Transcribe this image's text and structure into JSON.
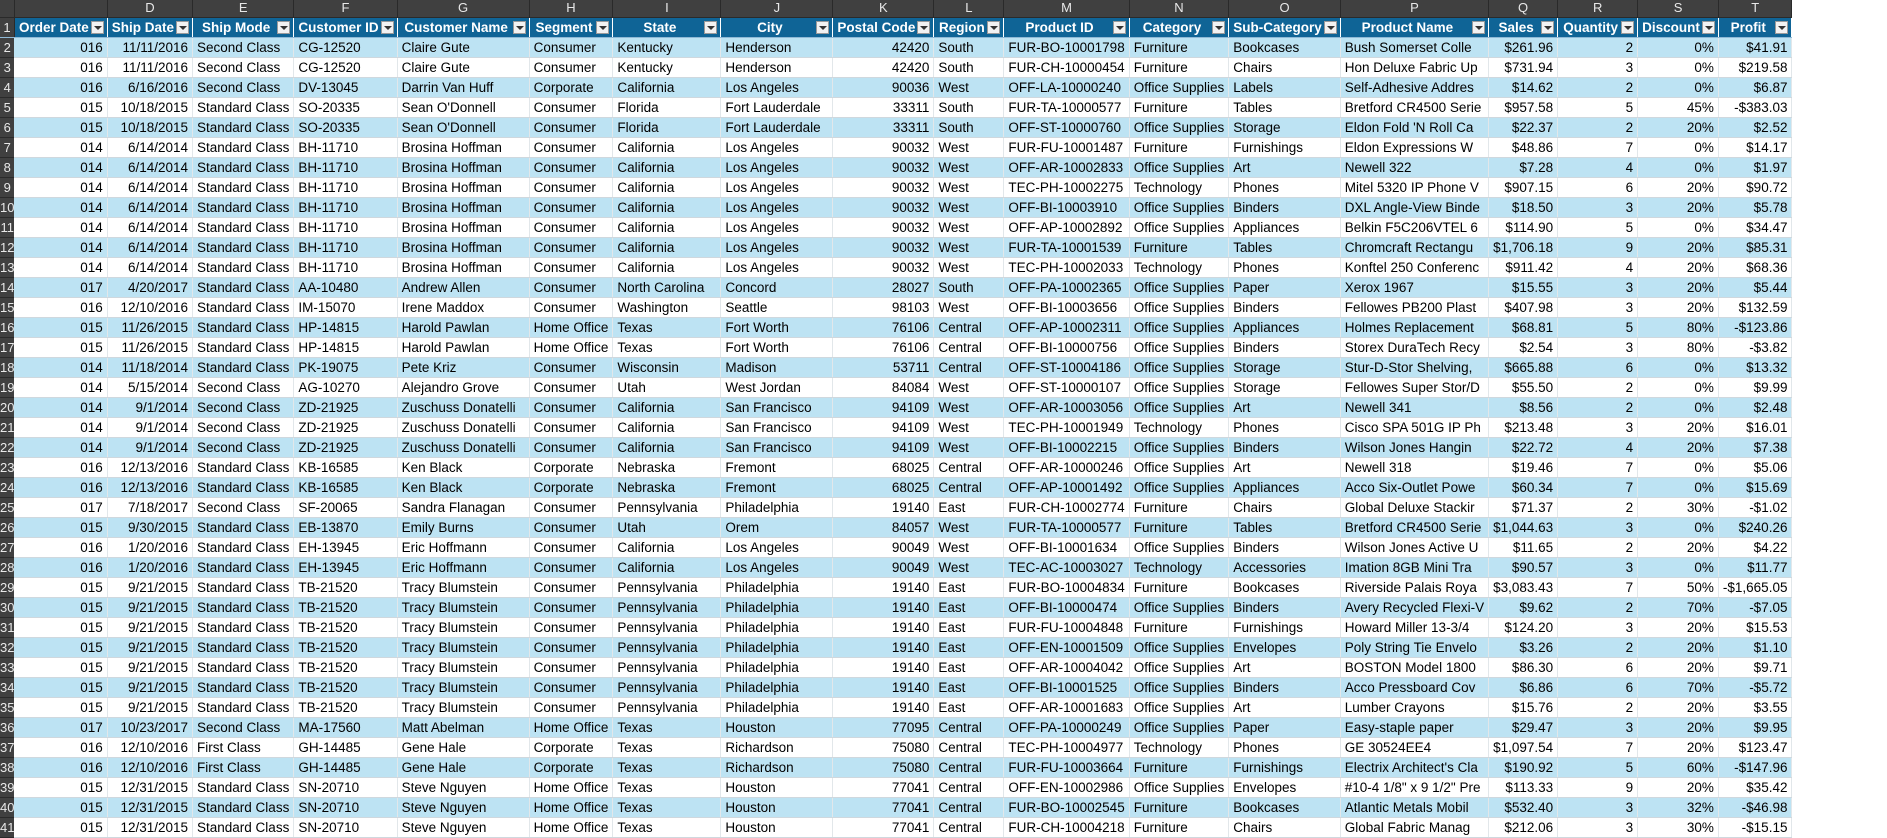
{
  "column_letters": [
    "D",
    "E",
    "F",
    "G",
    "H",
    "I",
    "J",
    "K",
    "L",
    "M",
    "N",
    "O",
    "P",
    "Q",
    "R",
    "S",
    "T"
  ],
  "headers": [
    "Order Date",
    "Ship Date",
    "Ship Mode",
    "Customer ID",
    "Customer Name",
    "Segment",
    "State",
    "City",
    "Postal Code",
    "Region",
    "Product ID",
    "Category",
    "Sub-Category",
    "Product Name",
    "Sales",
    "Quantity",
    "Discount",
    "Profit"
  ],
  "rows": [
    [
      "016",
      "11/11/2016",
      "Second Class",
      "CG-12520",
      "Claire Gute",
      "Consumer",
      "Kentucky",
      "Henderson",
      "42420",
      "South",
      "FUR-BO-10001798",
      "Furniture",
      "Bookcases",
      "Bush Somerset Colle",
      "$261.96",
      "2",
      "0%",
      "$41.91"
    ],
    [
      "016",
      "11/11/2016",
      "Second Class",
      "CG-12520",
      "Claire Gute",
      "Consumer",
      "Kentucky",
      "Henderson",
      "42420",
      "South",
      "FUR-CH-10000454",
      "Furniture",
      "Chairs",
      "Hon Deluxe Fabric Up",
      "$731.94",
      "3",
      "0%",
      "$219.58"
    ],
    [
      "016",
      "6/16/2016",
      "Second Class",
      "DV-13045",
      "Darrin Van Huff",
      "Corporate",
      "California",
      "Los Angeles",
      "90036",
      "West",
      "OFF-LA-10000240",
      "Office Supplies",
      "Labels",
      "Self-Adhesive Addres",
      "$14.62",
      "2",
      "0%",
      "$6.87"
    ],
    [
      "015",
      "10/18/2015",
      "Standard Class",
      "SO-20335",
      "Sean O'Donnell",
      "Consumer",
      "Florida",
      "Fort Lauderdale",
      "33311",
      "South",
      "FUR-TA-10000577",
      "Furniture",
      "Tables",
      "Bretford CR4500 Serie",
      "$957.58",
      "5",
      "45%",
      "-$383.03"
    ],
    [
      "015",
      "10/18/2015",
      "Standard Class",
      "SO-20335",
      "Sean O'Donnell",
      "Consumer",
      "Florida",
      "Fort Lauderdale",
      "33311",
      "South",
      "OFF-ST-10000760",
      "Office Supplies",
      "Storage",
      "Eldon Fold 'N Roll Ca",
      "$22.37",
      "2",
      "20%",
      "$2.52"
    ],
    [
      "014",
      "6/14/2014",
      "Standard Class",
      "BH-11710",
      "Brosina Hoffman",
      "Consumer",
      "California",
      "Los Angeles",
      "90032",
      "West",
      "FUR-FU-10001487",
      "Furniture",
      "Furnishings",
      "Eldon Expressions W",
      "$48.86",
      "7",
      "0%",
      "$14.17"
    ],
    [
      "014",
      "6/14/2014",
      "Standard Class",
      "BH-11710",
      "Brosina Hoffman",
      "Consumer",
      "California",
      "Los Angeles",
      "90032",
      "West",
      "OFF-AR-10002833",
      "Office Supplies",
      "Art",
      "Newell 322",
      "$7.28",
      "4",
      "0%",
      "$1.97"
    ],
    [
      "014",
      "6/14/2014",
      "Standard Class",
      "BH-11710",
      "Brosina Hoffman",
      "Consumer",
      "California",
      "Los Angeles",
      "90032",
      "West",
      "TEC-PH-10002275",
      "Technology",
      "Phones",
      "Mitel 5320 IP Phone V",
      "$907.15",
      "6",
      "20%",
      "$90.72"
    ],
    [
      "014",
      "6/14/2014",
      "Standard Class",
      "BH-11710",
      "Brosina Hoffman",
      "Consumer",
      "California",
      "Los Angeles",
      "90032",
      "West",
      "OFF-BI-10003910",
      "Office Supplies",
      "Binders",
      "DXL Angle-View Binde",
      "$18.50",
      "3",
      "20%",
      "$5.78"
    ],
    [
      "014",
      "6/14/2014",
      "Standard Class",
      "BH-11710",
      "Brosina Hoffman",
      "Consumer",
      "California",
      "Los Angeles",
      "90032",
      "West",
      "OFF-AP-10002892",
      "Office Supplies",
      "Appliances",
      "Belkin F5C206VTEL 6",
      "$114.90",
      "5",
      "0%",
      "$34.47"
    ],
    [
      "014",
      "6/14/2014",
      "Standard Class",
      "BH-11710",
      "Brosina Hoffman",
      "Consumer",
      "California",
      "Los Angeles",
      "90032",
      "West",
      "FUR-TA-10001539",
      "Furniture",
      "Tables",
      "Chromcraft Rectangu",
      "$1,706.18",
      "9",
      "20%",
      "$85.31"
    ],
    [
      "014",
      "6/14/2014",
      "Standard Class",
      "BH-11710",
      "Brosina Hoffman",
      "Consumer",
      "California",
      "Los Angeles",
      "90032",
      "West",
      "TEC-PH-10002033",
      "Technology",
      "Phones",
      "Konftel 250 Conferenc",
      "$911.42",
      "4",
      "20%",
      "$68.36"
    ],
    [
      "017",
      "4/20/2017",
      "Standard Class",
      "AA-10480",
      "Andrew Allen",
      "Consumer",
      "North Carolina",
      "Concord",
      "28027",
      "South",
      "OFF-PA-10002365",
      "Office Supplies",
      "Paper",
      "Xerox 1967",
      "$15.55",
      "3",
      "20%",
      "$5.44"
    ],
    [
      "016",
      "12/10/2016",
      "Standard Class",
      "IM-15070",
      "Irene Maddox",
      "Consumer",
      "Washington",
      "Seattle",
      "98103",
      "West",
      "OFF-BI-10003656",
      "Office Supplies",
      "Binders",
      "Fellowes PB200 Plast",
      "$407.98",
      "3",
      "20%",
      "$132.59"
    ],
    [
      "015",
      "11/26/2015",
      "Standard Class",
      "HP-14815",
      "Harold Pawlan",
      "Home Office",
      "Texas",
      "Fort Worth",
      "76106",
      "Central",
      "OFF-AP-10002311",
      "Office Supplies",
      "Appliances",
      "Holmes Replacement",
      "$68.81",
      "5",
      "80%",
      "-$123.86"
    ],
    [
      "015",
      "11/26/2015",
      "Standard Class",
      "HP-14815",
      "Harold Pawlan",
      "Home Office",
      "Texas",
      "Fort Worth",
      "76106",
      "Central",
      "OFF-BI-10000756",
      "Office Supplies",
      "Binders",
      "Storex DuraTech Recy",
      "$2.54",
      "3",
      "80%",
      "-$3.82"
    ],
    [
      "014",
      "11/18/2014",
      "Standard Class",
      "PK-19075",
      "Pete Kriz",
      "Consumer",
      "Wisconsin",
      "Madison",
      "53711",
      "Central",
      "OFF-ST-10004186",
      "Office Supplies",
      "Storage",
      "Stur-D-Stor Shelving,",
      "$665.88",
      "6",
      "0%",
      "$13.32"
    ],
    [
      "014",
      "5/15/2014",
      "Second Class",
      "AG-10270",
      "Alejandro Grove",
      "Consumer",
      "Utah",
      "West Jordan",
      "84084",
      "West",
      "OFF-ST-10000107",
      "Office Supplies",
      "Storage",
      "Fellowes Super Stor/D",
      "$55.50",
      "2",
      "0%",
      "$9.99"
    ],
    [
      "014",
      "9/1/2014",
      "Second Class",
      "ZD-21925",
      "Zuschuss Donatelli",
      "Consumer",
      "California",
      "San Francisco",
      "94109",
      "West",
      "OFF-AR-10003056",
      "Office Supplies",
      "Art",
      "Newell 341",
      "$8.56",
      "2",
      "0%",
      "$2.48"
    ],
    [
      "014",
      "9/1/2014",
      "Second Class",
      "ZD-21925",
      "Zuschuss Donatelli",
      "Consumer",
      "California",
      "San Francisco",
      "94109",
      "West",
      "TEC-PH-10001949",
      "Technology",
      "Phones",
      "Cisco SPA 501G IP Ph",
      "$213.48",
      "3",
      "20%",
      "$16.01"
    ],
    [
      "014",
      "9/1/2014",
      "Second Class",
      "ZD-21925",
      "Zuschuss Donatelli",
      "Consumer",
      "California",
      "San Francisco",
      "94109",
      "West",
      "OFF-BI-10002215",
      "Office Supplies",
      "Binders",
      "Wilson Jones Hangin",
      "$22.72",
      "4",
      "20%",
      "$7.38"
    ],
    [
      "016",
      "12/13/2016",
      "Standard Class",
      "KB-16585",
      "Ken Black",
      "Corporate",
      "Nebraska",
      "Fremont",
      "68025",
      "Central",
      "OFF-AR-10000246",
      "Office Supplies",
      "Art",
      "Newell 318",
      "$19.46",
      "7",
      "0%",
      "$5.06"
    ],
    [
      "016",
      "12/13/2016",
      "Standard Class",
      "KB-16585",
      "Ken Black",
      "Corporate",
      "Nebraska",
      "Fremont",
      "68025",
      "Central",
      "OFF-AP-10001492",
      "Office Supplies",
      "Appliances",
      "Acco Six-Outlet Powe",
      "$60.34",
      "7",
      "0%",
      "$15.69"
    ],
    [
      "017",
      "7/18/2017",
      "Second Class",
      "SF-20065",
      "Sandra Flanagan",
      "Consumer",
      "Pennsylvania",
      "Philadelphia",
      "19140",
      "East",
      "FUR-CH-10002774",
      "Furniture",
      "Chairs",
      "Global Deluxe Stackir",
      "$71.37",
      "2",
      "30%",
      "-$1.02"
    ],
    [
      "015",
      "9/30/2015",
      "Standard Class",
      "EB-13870",
      "Emily Burns",
      "Consumer",
      "Utah",
      "Orem",
      "84057",
      "West",
      "FUR-TA-10000577",
      "Furniture",
      "Tables",
      "Bretford CR4500 Serie",
      "$1,044.63",
      "3",
      "0%",
      "$240.26"
    ],
    [
      "016",
      "1/20/2016",
      "Standard Class",
      "EH-13945",
      "Eric Hoffmann",
      "Consumer",
      "California",
      "Los Angeles",
      "90049",
      "West",
      "OFF-BI-10001634",
      "Office Supplies",
      "Binders",
      "Wilson Jones Active U",
      "$11.65",
      "2",
      "20%",
      "$4.22"
    ],
    [
      "016",
      "1/20/2016",
      "Standard Class",
      "EH-13945",
      "Eric Hoffmann",
      "Consumer",
      "California",
      "Los Angeles",
      "90049",
      "West",
      "TEC-AC-10003027",
      "Technology",
      "Accessories",
      "Imation 8GB Mini Tra",
      "$90.57",
      "3",
      "0%",
      "$11.77"
    ],
    [
      "015",
      "9/21/2015",
      "Standard Class",
      "TB-21520",
      "Tracy Blumstein",
      "Consumer",
      "Pennsylvania",
      "Philadelphia",
      "19140",
      "East",
      "FUR-BO-10004834",
      "Furniture",
      "Bookcases",
      "Riverside Palais Roya",
      "$3,083.43",
      "7",
      "50%",
      "-$1,665.05"
    ],
    [
      "015",
      "9/21/2015",
      "Standard Class",
      "TB-21520",
      "Tracy Blumstein",
      "Consumer",
      "Pennsylvania",
      "Philadelphia",
      "19140",
      "East",
      "OFF-BI-10000474",
      "Office Supplies",
      "Binders",
      "Avery Recycled Flexi-V",
      "$9.62",
      "2",
      "70%",
      "-$7.05"
    ],
    [
      "015",
      "9/21/2015",
      "Standard Class",
      "TB-21520",
      "Tracy Blumstein",
      "Consumer",
      "Pennsylvania",
      "Philadelphia",
      "19140",
      "East",
      "FUR-FU-10004848",
      "Furniture",
      "Furnishings",
      "Howard Miller 13-3/4",
      "$124.20",
      "3",
      "20%",
      "$15.53"
    ],
    [
      "015",
      "9/21/2015",
      "Standard Class",
      "TB-21520",
      "Tracy Blumstein",
      "Consumer",
      "Pennsylvania",
      "Philadelphia",
      "19140",
      "East",
      "OFF-EN-10001509",
      "Office Supplies",
      "Envelopes",
      "Poly String Tie Envelo",
      "$3.26",
      "2",
      "20%",
      "$1.10"
    ],
    [
      "015",
      "9/21/2015",
      "Standard Class",
      "TB-21520",
      "Tracy Blumstein",
      "Consumer",
      "Pennsylvania",
      "Philadelphia",
      "19140",
      "East",
      "OFF-AR-10004042",
      "Office Supplies",
      "Art",
      "BOSTON Model 1800",
      "$86.30",
      "6",
      "20%",
      "$9.71"
    ],
    [
      "015",
      "9/21/2015",
      "Standard Class",
      "TB-21520",
      "Tracy Blumstein",
      "Consumer",
      "Pennsylvania",
      "Philadelphia",
      "19140",
      "East",
      "OFF-BI-10001525",
      "Office Supplies",
      "Binders",
      "Acco Pressboard Cov",
      "$6.86",
      "6",
      "70%",
      "-$5.72"
    ],
    [
      "015",
      "9/21/2015",
      "Standard Class",
      "TB-21520",
      "Tracy Blumstein",
      "Consumer",
      "Pennsylvania",
      "Philadelphia",
      "19140",
      "East",
      "OFF-AR-10001683",
      "Office Supplies",
      "Art",
      "Lumber Crayons",
      "$15.76",
      "2",
      "20%",
      "$3.55"
    ],
    [
      "017",
      "10/23/2017",
      "Second Class",
      "MA-17560",
      "Matt Abelman",
      "Home Office",
      "Texas",
      "Houston",
      "77095",
      "Central",
      "OFF-PA-10000249",
      "Office Supplies",
      "Paper",
      "Easy-staple paper",
      "$29.47",
      "3",
      "20%",
      "$9.95"
    ],
    [
      "016",
      "12/10/2016",
      "First Class",
      "GH-14485",
      "Gene Hale",
      "Corporate",
      "Texas",
      "Richardson",
      "75080",
      "Central",
      "TEC-PH-10004977",
      "Technology",
      "Phones",
      "GE 30524EE4",
      "$1,097.54",
      "7",
      "20%",
      "$123.47"
    ],
    [
      "016",
      "12/10/2016",
      "First Class",
      "GH-14485",
      "Gene Hale",
      "Corporate",
      "Texas",
      "Richardson",
      "75080",
      "Central",
      "FUR-FU-10003664",
      "Furniture",
      "Furnishings",
      "Electrix Architect's Cla",
      "$190.92",
      "5",
      "60%",
      "-$147.96"
    ],
    [
      "015",
      "12/31/2015",
      "Standard Class",
      "SN-20710",
      "Steve Nguyen",
      "Home Office",
      "Texas",
      "Houston",
      "77041",
      "Central",
      "OFF-EN-10002986",
      "Office Supplies",
      "Envelopes",
      "#10-4 1/8\" x 9 1/2\" Pre",
      "$113.33",
      "9",
      "20%",
      "$35.42"
    ],
    [
      "015",
      "12/31/2015",
      "Standard Class",
      "SN-20710",
      "Steve Nguyen",
      "Home Office",
      "Texas",
      "Houston",
      "77041",
      "Central",
      "FUR-BO-10002545",
      "Furniture",
      "Bookcases",
      "Atlantic Metals Mobil",
      "$532.40",
      "3",
      "32%",
      "-$46.98"
    ],
    [
      "015",
      "12/31/2015",
      "Standard Class",
      "SN-20710",
      "Steve Nguyen",
      "Home Office",
      "Texas",
      "Houston",
      "77041",
      "Central",
      "FUR-CH-10004218",
      "Furniture",
      "Chairs",
      "Global Fabric Manag",
      "$212.06",
      "3",
      "30%",
      "-$15.15"
    ]
  ],
  "colors": {
    "header_bg": "#0f6496",
    "band_bg": "#bde3f3",
    "chrome_bg": "#404040"
  }
}
